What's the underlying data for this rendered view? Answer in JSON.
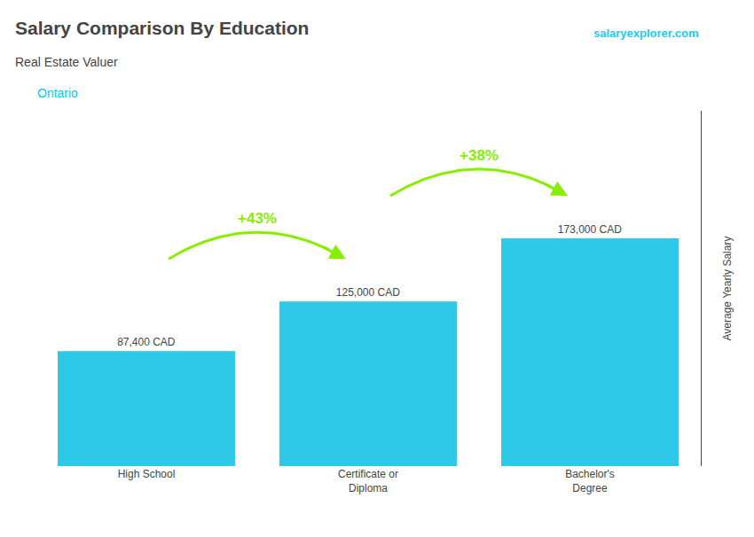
{
  "chart_data": {
    "type": "bar",
    "title": "Salary Comparison By Education",
    "subtitle": "Real Estate Valuer",
    "ylabel": "Average Yearly Salary",
    "annotations": [
      {
        "text": "Ontario",
        "color": "#00ccee"
      },
      {
        "text": "salaryexplorer.com",
        "color": "#22ccee"
      }
    ],
    "arrows": [
      {
        "text": "+43%",
        "from": "High School",
        "to": "Certificate or\nDiploma",
        "color": "#88ee00"
      },
      {
        "text": "+38%",
        "from": "Certificate or\nDiploma",
        "to": "Bachelor's\nDegree",
        "color": "#88ee00"
      }
    ],
    "categories": [
      "High School",
      "Certificate or\nDiploma",
      "Bachelor's\nDegree"
    ],
    "values": [
      87400,
      125000,
      173000
    ],
    "value_labels": [
      "87,400 CAD",
      "125,000 CAD",
      "173,000 CAD"
    ],
    "color": "#2ec8e8",
    "data_labels": true,
    "ylim": [
      0,
      270000
    ],
    "grid": false,
    "tick_labels": "x"
  }
}
